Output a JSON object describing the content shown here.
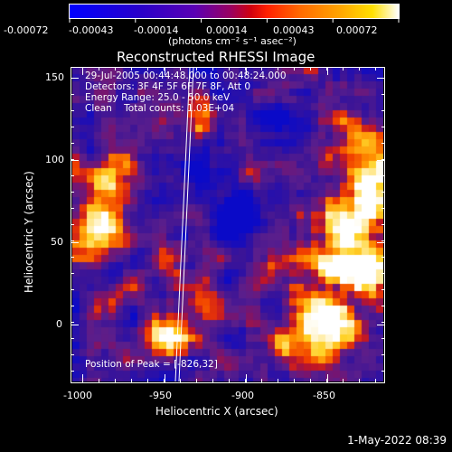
{
  "colorbar": {
    "tick_labels": [
      "-0.00072",
      "-0.00043",
      "-0.00014",
      "0.00014",
      "0.00043",
      "0.00072"
    ],
    "units_label": "(photons cm⁻² s⁻¹ asec⁻²)"
  },
  "title": "Reconstructed RHESSI Image",
  "info": {
    "line1": "29-Jul-2005 00:44:48.000 to 00:48:24.000",
    "line2": "Detectors: 3F 4F 5F 6F 7F 8F, Att 0",
    "line3": "Energy Range: 25.0 - 50.0 keV",
    "line4": "Clean    Total counts: 1.03E+04"
  },
  "peak_label": "Position of Peak = [-826,32]",
  "axes": {
    "xlabel": "Heliocentric X (arcsec)",
    "ylabel": "Heliocentric Y (arcsec)",
    "x_ticks": [
      "-1000",
      "-950",
      "-900",
      "-850"
    ],
    "y_ticks": [
      "150",
      "100",
      "50",
      "0"
    ]
  },
  "timestamp": "1-May-2022 08:39",
  "colors": {
    "low": "#3a0080",
    "mid": "#c01020",
    "high": "#ffffff"
  }
}
